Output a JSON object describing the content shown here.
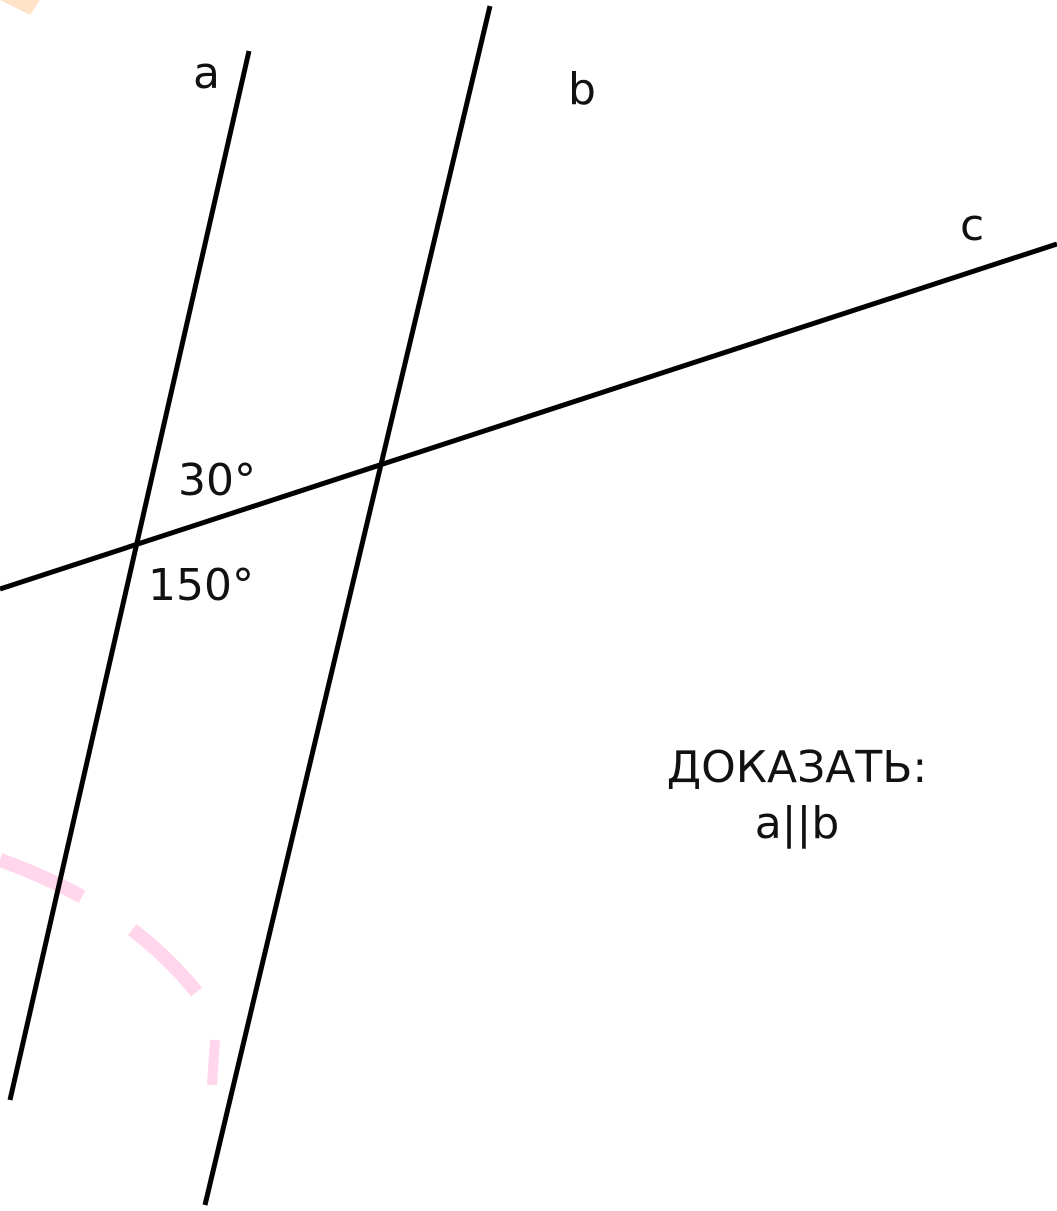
{
  "lines": [
    {
      "label": "a"
    },
    {
      "label": "b"
    },
    {
      "label": "c"
    }
  ],
  "angles": [
    {
      "label": "30°"
    },
    {
      "label": "150°"
    }
  ],
  "task": {
    "title": "ДОКАЗАТЬ:",
    "statement": "a||b"
  }
}
